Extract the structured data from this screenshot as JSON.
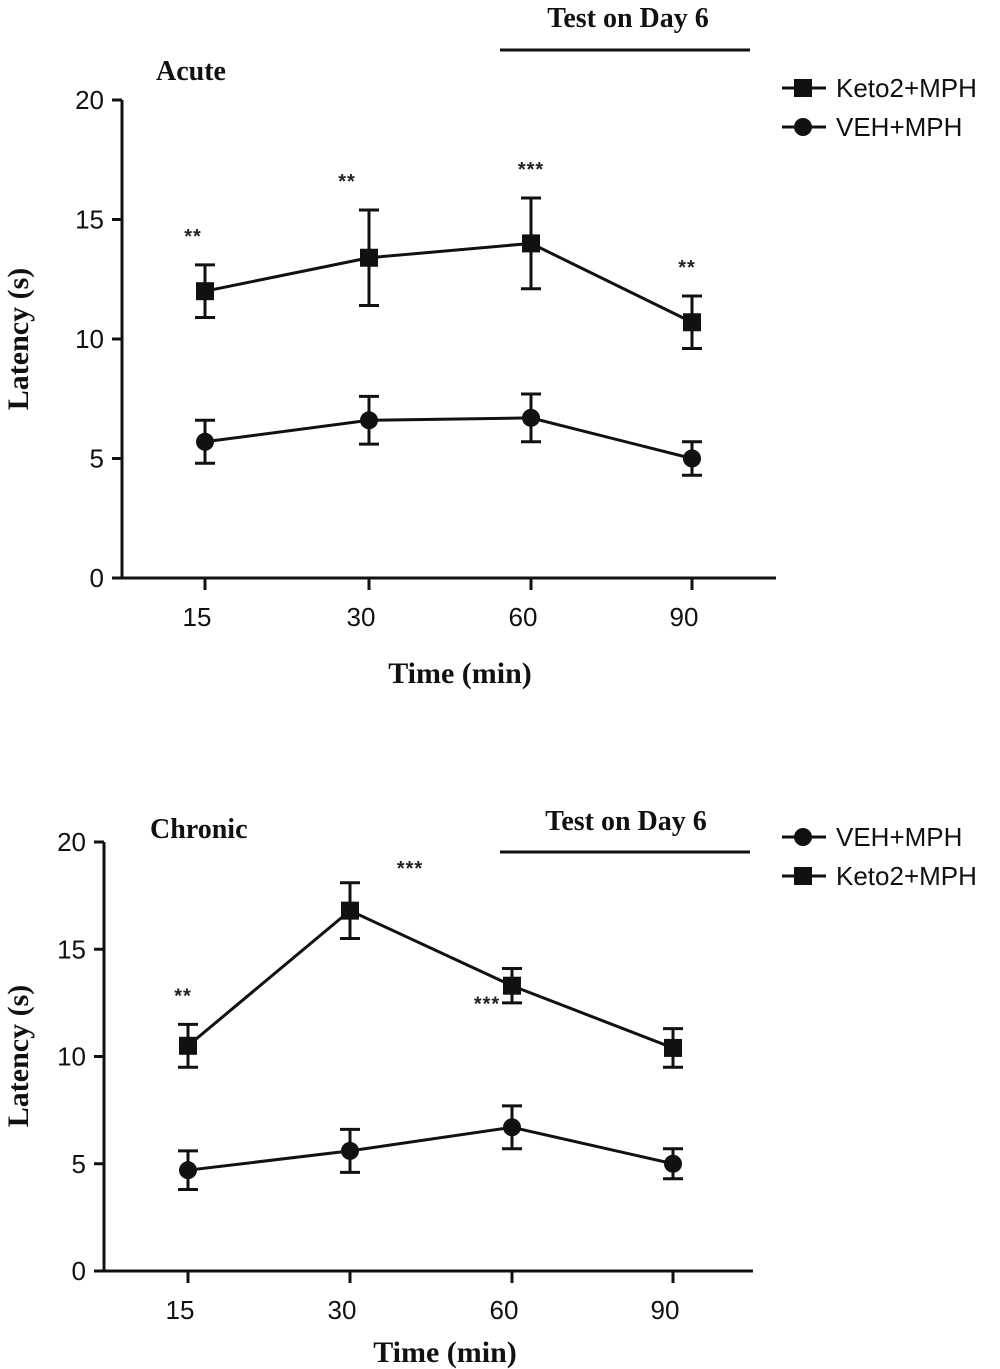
{
  "chart_data": [
    {
      "type": "line",
      "title": "Acute",
      "test_label": "Test on Day 6",
      "xlabel": "Time (min)",
      "ylabel": "Latency (s)",
      "categories": [
        "15",
        "30",
        "60",
        "90"
      ],
      "ylim": [
        0,
        20
      ],
      "yticks": [
        "0",
        "5",
        "10",
        "15",
        "20"
      ],
      "legend_position": "top-right",
      "series": [
        {
          "name": "Keto2+MPH",
          "marker": "square",
          "values": [
            12.0,
            13.4,
            14.0,
            10.7
          ],
          "errors": [
            1.1,
            2.0,
            1.9,
            1.1
          ],
          "significance": [
            "**",
            "**",
            "***",
            "**"
          ]
        },
        {
          "name": "VEH+MPH",
          "marker": "circle",
          "values": [
            5.7,
            6.6,
            6.7,
            5.0
          ],
          "errors": [
            0.9,
            1.0,
            1.0,
            0.7
          ],
          "significance": [
            "",
            "",
            "",
            ""
          ]
        }
      ]
    },
    {
      "type": "line",
      "title": "Chronic",
      "test_label": "Test on Day 6",
      "xlabel": "Time (min)",
      "ylabel": "Latency (s)",
      "categories": [
        "15",
        "30",
        "60",
        "90"
      ],
      "ylim": [
        0,
        20
      ],
      "yticks": [
        "0",
        "5",
        "10",
        "15",
        "20"
      ],
      "legend_position": "top-right",
      "series": [
        {
          "name": "VEH+MPH",
          "marker": "circle",
          "values": [
            4.7,
            5.6,
            6.7,
            5.0
          ],
          "errors": [
            0.9,
            1.0,
            1.0,
            0.7
          ],
          "significance": [
            "",
            "",
            "",
            ""
          ]
        },
        {
          "name": "Keto2+MPH",
          "marker": "square",
          "values": [
            10.5,
            16.8,
            13.3,
            10.4
          ],
          "errors": [
            1.0,
            1.3,
            0.8,
            0.9
          ],
          "significance": [
            "**",
            "***",
            "***",
            ""
          ]
        }
      ]
    }
  ]
}
